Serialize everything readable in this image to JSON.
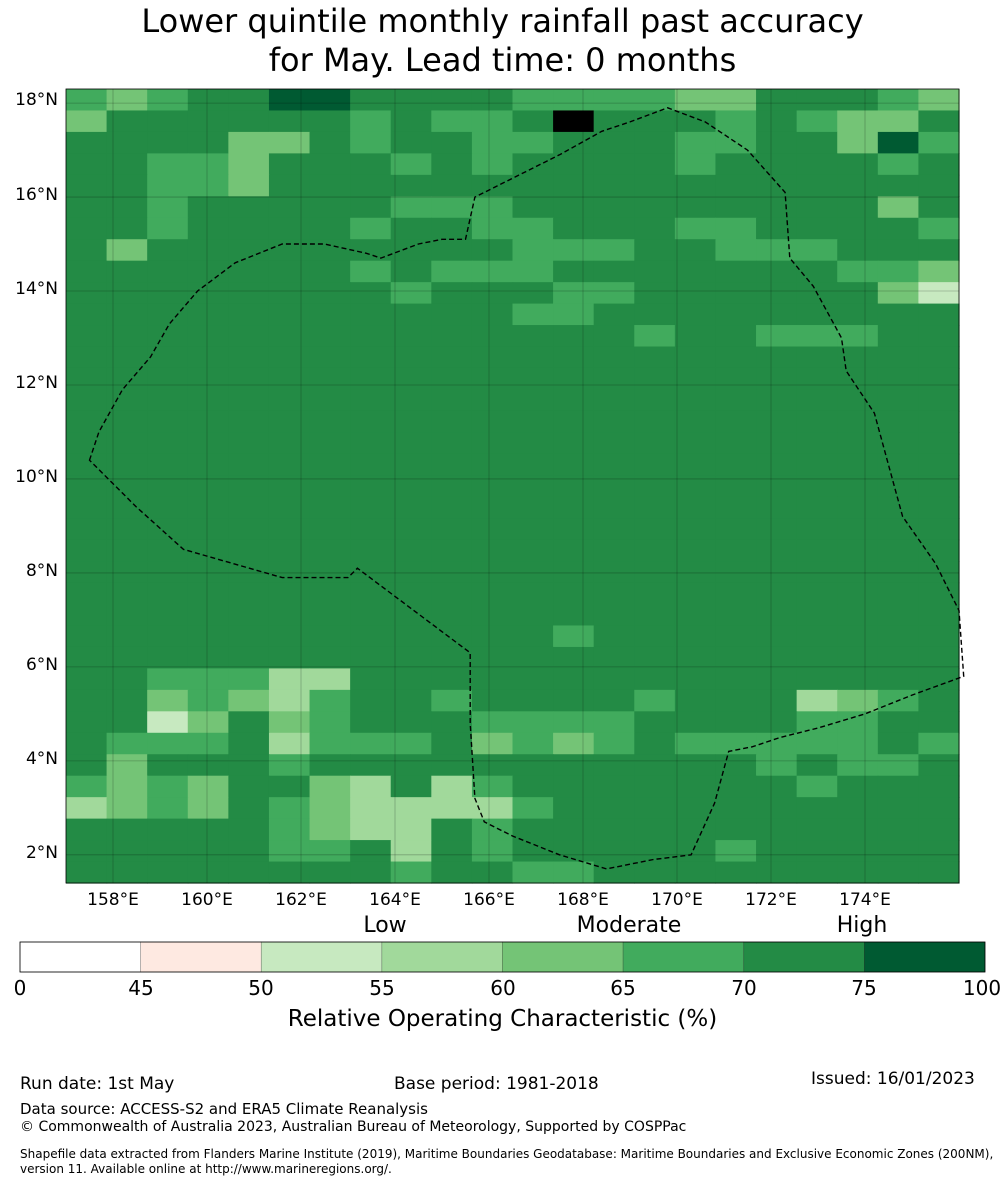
{
  "title": {
    "line1": "Lower quintile monthly rainfall past accuracy",
    "line2": "for May. Lead time: 0 months"
  },
  "map": {
    "lat_labels": [
      "18°N",
      "16°N",
      "14°N",
      "12°N",
      "10°N",
      "8°N",
      "6°N",
      "4°N",
      "2°N"
    ],
    "lon_labels": [
      "158°E",
      "160°E",
      "162°E",
      "164°E",
      "166°E",
      "168°E",
      "170°E",
      "172°E",
      "174°E"
    ],
    "lat_range": [
      1.4,
      18.3
    ],
    "lon_range": [
      157.0,
      176.0
    ],
    "grid_rows": [
      "5456677666655554466654",
      "4666666565568666565446",
      "6666446566556665566475",
      "6655466656566665666656",
      "6655466666666666666666",
      "6656666655566666666646",
      "6656666566556665566665",
      "6466666666655566555666",
      "6666666565556666666554",
      "6666666656665566666642",
      "6666666666655666666666",
      "6666666666666656655566",
      "6666666666666666666666",
      "6666666666666666666666",
      "6666666666666666666666",
      "6666666666666666666666",
      "6666666666666666666666",
      "6666666666666666666666",
      "6666666666666666666666",
      "6666666666666666666666",
      "6666666666666666666666",
      "6666666666666666666666",
      "6666666666666666666666",
      "6666666666666666666666",
      "6666666666666666666666",
      "6666666666665666666666",
      "6666666666666666666666",
      "6655533666666666666666",
      "6645435665666656663456",
      "6624645666555566665566",
      "6555635556454565555565",
      "6466656666666666656556",
      "5454664363566666665666",
      "3454654333356666666666",
      "6666654336566666666666",
      "6666655636566666566666",
      "6666666656655666666666"
    ],
    "eez_coords": [
      [
        157.5,
        10.4
      ],
      [
        157.7,
        11.0
      ],
      [
        158.2,
        11.9
      ],
      [
        158.8,
        12.6
      ],
      [
        159.2,
        13.3
      ],
      [
        159.8,
        14.0
      ],
      [
        160.6,
        14.6
      ],
      [
        161.6,
        15.0
      ],
      [
        162.5,
        15.0
      ],
      [
        163.4,
        14.8
      ],
      [
        163.7,
        14.7
      ],
      [
        164.5,
        15.0
      ],
      [
        165.0,
        15.1
      ],
      [
        165.5,
        15.1
      ],
      [
        165.7,
        16.0
      ],
      [
        166.5,
        16.4
      ],
      [
        167.5,
        16.9
      ],
      [
        168.4,
        17.4
      ],
      [
        169.0,
        17.6
      ],
      [
        169.8,
        17.9
      ],
      [
        170.6,
        17.6
      ],
      [
        171.5,
        17.0
      ],
      [
        172.3,
        16.1
      ],
      [
        172.4,
        14.7
      ],
      [
        172.9,
        14.1
      ],
      [
        173.5,
        13.0
      ],
      [
        173.6,
        12.3
      ],
      [
        174.2,
        11.4
      ],
      [
        174.5,
        10.3
      ],
      [
        174.8,
        9.2
      ],
      [
        175.5,
        8.2
      ],
      [
        176.0,
        7.2
      ],
      [
        176.1,
        5.8
      ],
      [
        175.0,
        5.4
      ],
      [
        174.0,
        5.0
      ],
      [
        173.0,
        4.7
      ],
      [
        172.2,
        4.5
      ],
      [
        171.6,
        4.3
      ],
      [
        171.1,
        4.2
      ],
      [
        170.8,
        3.1
      ],
      [
        170.3,
        2.0
      ],
      [
        169.5,
        1.9
      ],
      [
        168.5,
        1.7
      ],
      [
        167.5,
        2.0
      ],
      [
        166.5,
        2.4
      ],
      [
        165.9,
        2.7
      ],
      [
        165.7,
        3.2
      ],
      [
        165.6,
        4.8
      ],
      [
        165.6,
        6.3
      ],
      [
        164.8,
        6.9
      ],
      [
        164.0,
        7.5
      ],
      [
        163.2,
        8.1
      ],
      [
        163.0,
        7.9
      ],
      [
        161.6,
        7.9
      ],
      [
        159.5,
        8.5
      ],
      [
        158.5,
        9.4
      ],
      [
        157.5,
        10.4
      ]
    ]
  },
  "colorbar": {
    "category_labels": [
      "Low",
      "Moderate",
      "High"
    ],
    "ticks": [
      "0",
      "45",
      "50",
      "55",
      "60",
      "65",
      "70",
      "75",
      "100"
    ],
    "colors": [
      "#ffffff",
      "#fee9e1",
      "#c7e9c0",
      "#a1d99b",
      "#74c476",
      "#41ab5d",
      "#238b45",
      "#005a32"
    ],
    "label": "Relative Operating Characteristic (%)"
  },
  "footer": {
    "run_date": "Run date: 1st May",
    "base_period": "Base period: 1981-2018",
    "issued": "Issued: 16/01/2023",
    "data_source": "Data source: ACCESS-S2 and ERA5 Climate Reanalysis",
    "copyright": "© Commonwealth of Australia 2023, Australian Bureau of Meteorology, Supported by COSPPac",
    "shapefile_line1": "Shapefile data extracted from Flanders Marine Institute (2019), Maritime Boundaries Geodatabase: Maritime Boundaries and Exclusive Economic Zones (200NM),",
    "shapefile_line2": "version 11. Available online at http://www.marineregions.org/."
  }
}
